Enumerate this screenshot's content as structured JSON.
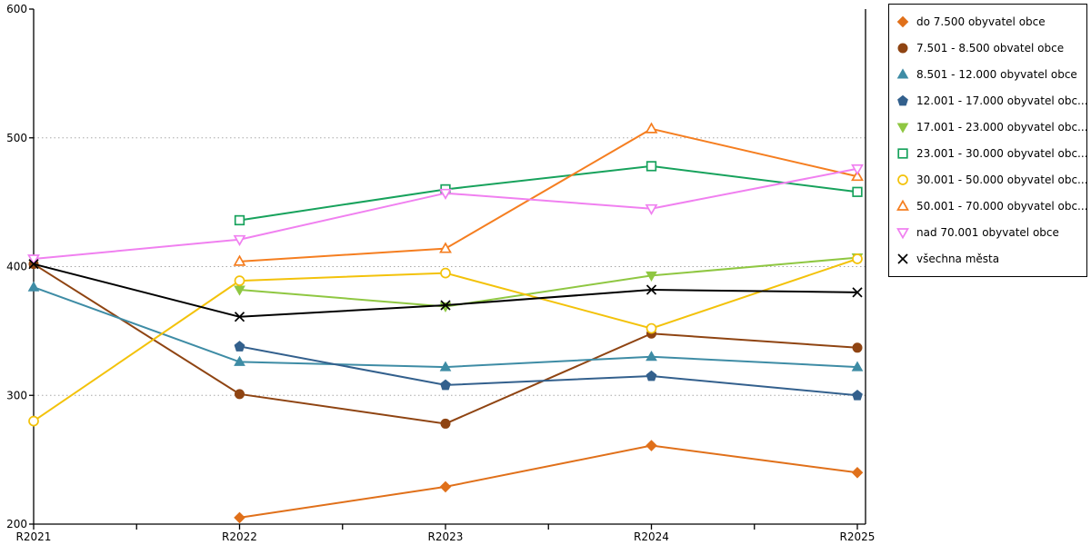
{
  "chart_data": {
    "type": "line",
    "title": "",
    "xlabel": "",
    "ylabel": "",
    "categories": [
      "R2021",
      "R2022",
      "R2023",
      "R2024",
      "R2025"
    ],
    "ylim": [
      200,
      600
    ],
    "y_ticks": [
      "200",
      "300",
      "400",
      "500",
      "600"
    ],
    "gridline_values": [
      300,
      400,
      500
    ],
    "grid": "dotted-horizontal",
    "legend_position": "outside-top-right",
    "series": [
      {
        "name": "do 7.500 obyvatel obce",
        "marker": "diamond",
        "style": "filled",
        "color": "#E0701A",
        "values": [
          null,
          205,
          229,
          261,
          240
        ]
      },
      {
        "name": "7.501 - 8.500 obvatel obce",
        "marker": "circle",
        "style": "filled",
        "color": "#8F4412",
        "values": [
          402,
          301,
          278,
          348,
          337
        ]
      },
      {
        "name": "8.501 - 12.000 obyvatel obce",
        "marker": "triangle-up",
        "style": "filled",
        "color": "#3E8CA5",
        "values": [
          384,
          326,
          322,
          330,
          322
        ]
      },
      {
        "name": "12.001 - 17.000 obyvatel obc...",
        "marker": "pentagon",
        "style": "filled",
        "color": "#33608D",
        "values": [
          null,
          338,
          308,
          315,
          300
        ]
      },
      {
        "name": "17.001 - 23.000 obyvatel obc...",
        "marker": "triangle-down",
        "style": "filled",
        "color": "#8FC742",
        "values": [
          null,
          382,
          369,
          393,
          407
        ]
      },
      {
        "name": "23.001 - 30.000 obyvatel obc...",
        "marker": "square",
        "style": "open",
        "color": "#17A25C",
        "values": [
          null,
          436,
          460,
          478,
          458
        ]
      },
      {
        "name": "30.001 - 50.000 obyvatel obc...",
        "marker": "circle",
        "style": "open",
        "color": "#F3C20A",
        "values": [
          280,
          389,
          395,
          352,
          406
        ]
      },
      {
        "name": "50.001 - 70.000 obyvatel obc...",
        "marker": "triangle-up",
        "style": "open",
        "color": "#F57E20",
        "values": [
          null,
          404,
          414,
          507,
          470
        ]
      },
      {
        "name": "nad 70.001 obyvatel obce",
        "marker": "triangle-down",
        "style": "open",
        "color": "#F080F0",
        "values": [
          406,
          421,
          457,
          445,
          476
        ]
      },
      {
        "name": "všechna města",
        "marker": "x",
        "style": "line",
        "color": "#000000",
        "values": [
          402,
          361,
          370,
          382,
          380
        ]
      }
    ]
  },
  "colors": {
    "background": "#FFFFFF",
    "axis": "#000000",
    "grid": "#A8A8A8",
    "legend_border": "#000000",
    "text": "#000000"
  }
}
